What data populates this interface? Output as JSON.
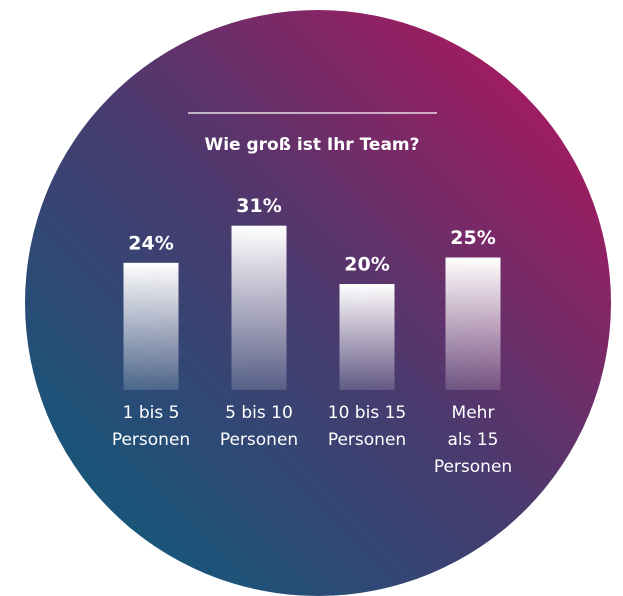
{
  "chart_data": {
    "type": "bar",
    "title": "Wie groß ist Ihr Team?",
    "categories": [
      [
        "1 bis 5",
        "Personen"
      ],
      [
        "5 bis 10",
        "Personen"
      ],
      [
        "10 bis 15",
        "Personen"
      ],
      [
        "Mehr",
        "als 15",
        "Personen"
      ]
    ],
    "values": [
      24,
      31,
      20,
      25
    ],
    "value_labels": [
      "24%",
      "31%",
      "20%",
      "25%"
    ],
    "color": "#ffffff"
  }
}
